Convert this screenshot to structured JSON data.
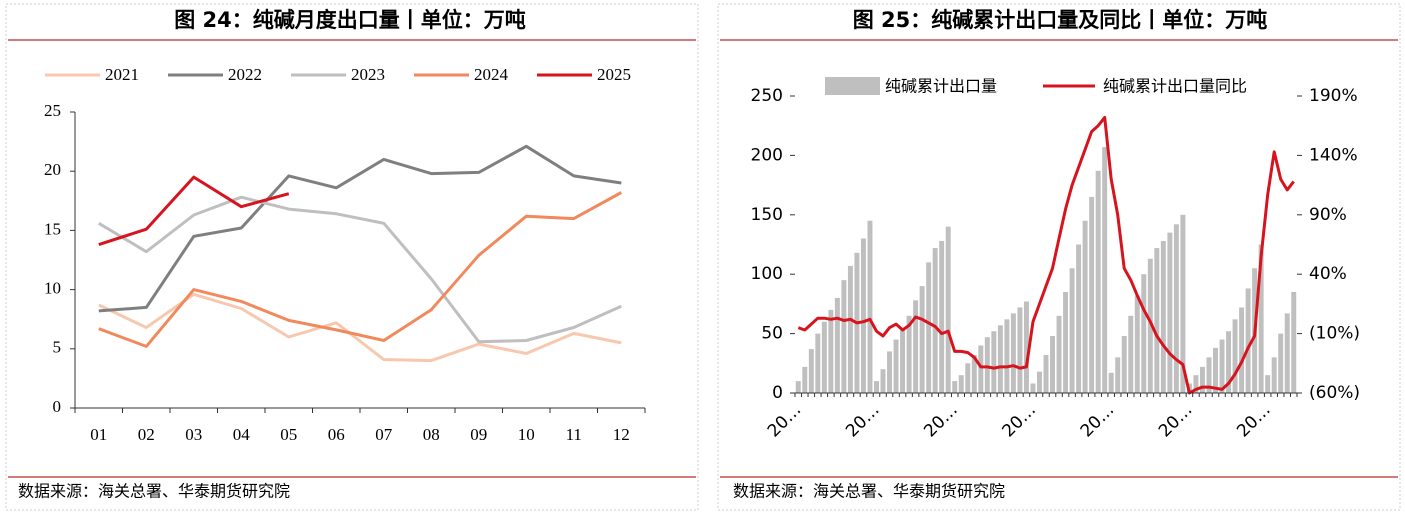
{
  "chart_data": [
    {
      "type": "line",
      "title": "图 24：纯碱月度出口量丨单位：万吨",
      "source": "数据来源：海关总署、华泰期货研究院",
      "categories": [
        "01",
        "02",
        "03",
        "04",
        "05",
        "06",
        "07",
        "08",
        "09",
        "10",
        "11",
        "12"
      ],
      "series": [
        {
          "name": "2021",
          "color": "#f8c8ae",
          "values": [
            8.7,
            6.8,
            9.6,
            8.4,
            6.0,
            7.2,
            4.1,
            4.0,
            5.4,
            4.6,
            6.3,
            5.5
          ]
        },
        {
          "name": "2022",
          "color": "#7f7f7f",
          "values": [
            8.2,
            8.5,
            14.5,
            15.2,
            19.6,
            18.6,
            21.0,
            19.8,
            19.9,
            22.1,
            19.6,
            19.0
          ]
        },
        {
          "name": "2023",
          "color": "#bfbfbf",
          "values": [
            15.6,
            13.2,
            16.3,
            17.8,
            16.8,
            16.4,
            15.6,
            10.9,
            5.6,
            5.7,
            6.8,
            8.6
          ]
        },
        {
          "name": "2024",
          "color": "#f08a5d",
          "values": [
            6.7,
            5.2,
            10.0,
            9.0,
            7.4,
            6.6,
            5.7,
            8.3,
            12.9,
            16.2,
            16.0,
            18.2
          ]
        },
        {
          "name": "2025",
          "color": "#d7141e",
          "values": [
            13.8,
            15.1,
            19.5,
            17.0,
            18.1,
            null,
            null,
            null,
            null,
            null,
            null,
            null
          ]
        }
      ],
      "ylim": [
        0,
        25
      ],
      "yticks": [
        0,
        5,
        10,
        15,
        20,
        25
      ],
      "grid": false
    },
    {
      "type": "bar",
      "title": "图 25：纯碱累计出口量及同比丨单位：万吨",
      "source": "数据来源：海关总署、华泰期货研究院",
      "categories": [
        "20…",
        null,
        null,
        null,
        null,
        null,
        null,
        null,
        null,
        null,
        null,
        null,
        "20…",
        null,
        null,
        null,
        null,
        null,
        null,
        null,
        null,
        null,
        null,
        null,
        "20…",
        null,
        null,
        null,
        null,
        null,
        null,
        null,
        null,
        null,
        null,
        null,
        "20…",
        null,
        null,
        null,
        null,
        null,
        null,
        null,
        null,
        null,
        null,
        null,
        "20…",
        null,
        null,
        null,
        null,
        null,
        null,
        null,
        null,
        null,
        null,
        null,
        "20…",
        null,
        null,
        null,
        null,
        null,
        null,
        null,
        null,
        null,
        null,
        null,
        "20…",
        null,
        null,
        null,
        null
      ],
      "series": [
        {
          "name": "纯碱累计出口量",
          "color": "#bfbfbf",
          "values": [
            10,
            22,
            37,
            50,
            60,
            70,
            80,
            95,
            107,
            118,
            130,
            145,
            10,
            20,
            35,
            45,
            55,
            65,
            78,
            90,
            110,
            122,
            128,
            140,
            10,
            15,
            25,
            32,
            40,
            47,
            52,
            57,
            62,
            67,
            72,
            77,
            8,
            18,
            32,
            48,
            65,
            85,
            105,
            125,
            145,
            165,
            187,
            207,
            17,
            30,
            48,
            65,
            82,
            100,
            113,
            122,
            128,
            135,
            142,
            150,
            8,
            15,
            22,
            30,
            38,
            45,
            52,
            62,
            72,
            88,
            105,
            125,
            15,
            30,
            50,
            67,
            85
          ]
        },
        {
          "name": "纯碱累计出口量同比",
          "color": "#d7141e",
          "type": "line",
          "axis": "y2",
          "values": [
            -5,
            -7,
            -2,
            3,
            3,
            2,
            3,
            1,
            2,
            -1,
            0,
            2,
            -8,
            -12,
            -5,
            -2,
            -7,
            -3,
            4,
            2,
            -1,
            -4,
            -10,
            -8,
            -25,
            -25,
            -26,
            -30,
            -38,
            -38,
            -39,
            -38,
            -38,
            -37,
            -39,
            -38,
            0,
            15,
            30,
            45,
            70,
            95,
            115,
            130,
            145,
            160,
            165,
            172,
            120,
            90,
            45,
            35,
            22,
            10,
            0,
            -12,
            -20,
            -27,
            -32,
            -36,
            -60,
            -57,
            -55,
            -55,
            -56,
            -57,
            -52,
            -44,
            -34,
            -22,
            -12,
            55,
            107,
            143,
            120,
            111,
            118
          ]
        }
      ],
      "ylim": [
        0,
        250
      ],
      "yticks": [
        0,
        50,
        100,
        150,
        200,
        250
      ],
      "y2lim": [
        -60,
        190
      ],
      "y2ticks": [
        {
          "value": -60,
          "label": "(60%)"
        },
        {
          "value": -10,
          "label": "(10%)"
        },
        {
          "value": 40,
          "label": "40%"
        },
        {
          "value": 90,
          "label": "90%"
        },
        {
          "value": 140,
          "label": "140%"
        },
        {
          "value": 190,
          "label": "190%"
        }
      ],
      "grid": false
    }
  ]
}
